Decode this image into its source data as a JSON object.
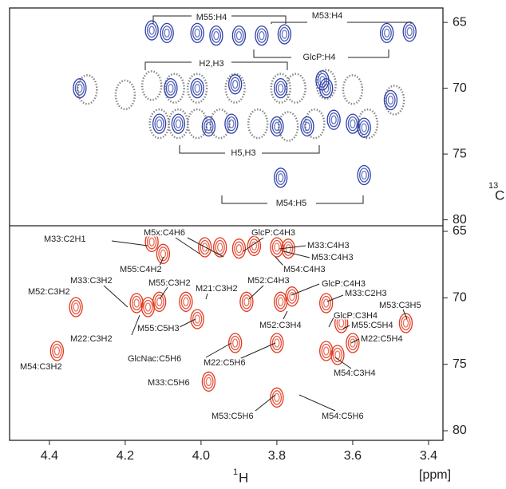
{
  "x_label": "H",
  "x_label_sup": "1",
  "y_label": "C",
  "y_label_sup": "13",
  "unit": "[ppm]",
  "chart_data": [
    {
      "type": "contour",
      "color": "#2b3ea8",
      "circle_color": "#888888",
      "xlim": [
        4.505,
        3.362
      ],
      "ylim": [
        63.9,
        80.45
      ],
      "yticks": [
        65,
        70,
        75,
        80
      ],
      "peaks": {
        "x": [
          4.13,
          4.09,
          4.01,
          3.96,
          3.9,
          3.84,
          3.78,
          3.51,
          3.45,
          4.32,
          4.08,
          4.01,
          3.91,
          3.79,
          3.68,
          3.67,
          4.11,
          4.06,
          3.98,
          3.92,
          3.8,
          3.72,
          3.65,
          3.6,
          3.57,
          3.5,
          3.79,
          3.57
        ],
        "y": [
          65.6,
          65.8,
          65.8,
          66.0,
          66.0,
          66.0,
          65.9,
          65.8,
          65.7,
          70.0,
          70.0,
          70.0,
          69.7,
          70.0,
          69.4,
          70.0,
          72.7,
          72.7,
          72.9,
          72.7,
          72.9,
          72.9,
          72.4,
          72.7,
          73.0,
          70.9,
          76.8,
          76.6
        ]
      },
      "circles": {
        "x": [
          4.3,
          4.2,
          4.13,
          4.07,
          4.01,
          3.91,
          3.79,
          3.75,
          3.67,
          3.6,
          3.49,
          4.11,
          4.06,
          4.01,
          3.95,
          3.85,
          3.77,
          3.7,
          3.56
        ],
        "y": [
          70.1,
          70.5,
          69.8,
          70.0,
          70.0,
          70.0,
          70.0,
          70.0,
          69.7,
          70.1,
          70.9,
          72.7,
          72.7,
          72.7,
          72.7,
          72.7,
          72.9,
          72.7,
          72.7
        ]
      },
      "annotations": [
        "M55:H4",
        "M53:H4",
        "GlcP:H4",
        "H2,H3",
        "H5,H3",
        "M54:H5"
      ]
    },
    {
      "type": "contour",
      "color": "#e2371d",
      "xlim": [
        4.505,
        3.362
      ],
      "ylim": [
        64.58,
        80.72
      ],
      "yticks": [
        65,
        70,
        75,
        80
      ],
      "xticks": [
        4.4,
        4.2,
        {
          "value": 4.0,
          "label": "4.0"
        },
        3.8,
        3.6,
        3.4
      ],
      "peaks": {
        "x": [
          4.13,
          4.1,
          3.99,
          3.95,
          3.9,
          3.86,
          3.8,
          3.77,
          4.33,
          4.17,
          4.14,
          4.11,
          4.04,
          4.01,
          3.88,
          3.79,
          3.76,
          3.67,
          3.63,
          3.6,
          3.46,
          3.8,
          3.91,
          3.67,
          3.64,
          4.38,
          3.98,
          3.8
        ],
        "y": [
          65.8,
          66.7,
          66.2,
          66.2,
          66.3,
          66.1,
          66.2,
          66.3,
          70.7,
          70.4,
          70.7,
          70.3,
          70.3,
          71.6,
          70.3,
          70.3,
          69.9,
          70.4,
          71.9,
          73.4,
          71.9,
          73.4,
          73.4,
          74.0,
          74.3,
          74.0,
          76.3,
          77.5
        ]
      },
      "annotations": [
        "M33:C2H1",
        "M5x:C4H6",
        "GlcP:C4H3",
        "M55:C4H2",
        "M33:C4H3",
        "M53:C4H3",
        "M54:C4H3",
        "M52:C3H2",
        "M33:C3H2",
        "M55:C3H2",
        "M21:C3H2",
        "M52:C4H3",
        "GlcP:C4H3",
        "M33:C2H3",
        "M53:C3H5",
        "M22:C3H2",
        "M55:C5H3",
        "M52:C3H4",
        "GlcP:C3H4",
        "M55:C5H4",
        "M22:C5H4",
        "M54:C3H2",
        "GlcNac:C5H6",
        "M22:C5H6",
        "M54:C3H4",
        "M33:C5H6",
        "M53:C5H6",
        "M54:C5H6"
      ]
    }
  ]
}
